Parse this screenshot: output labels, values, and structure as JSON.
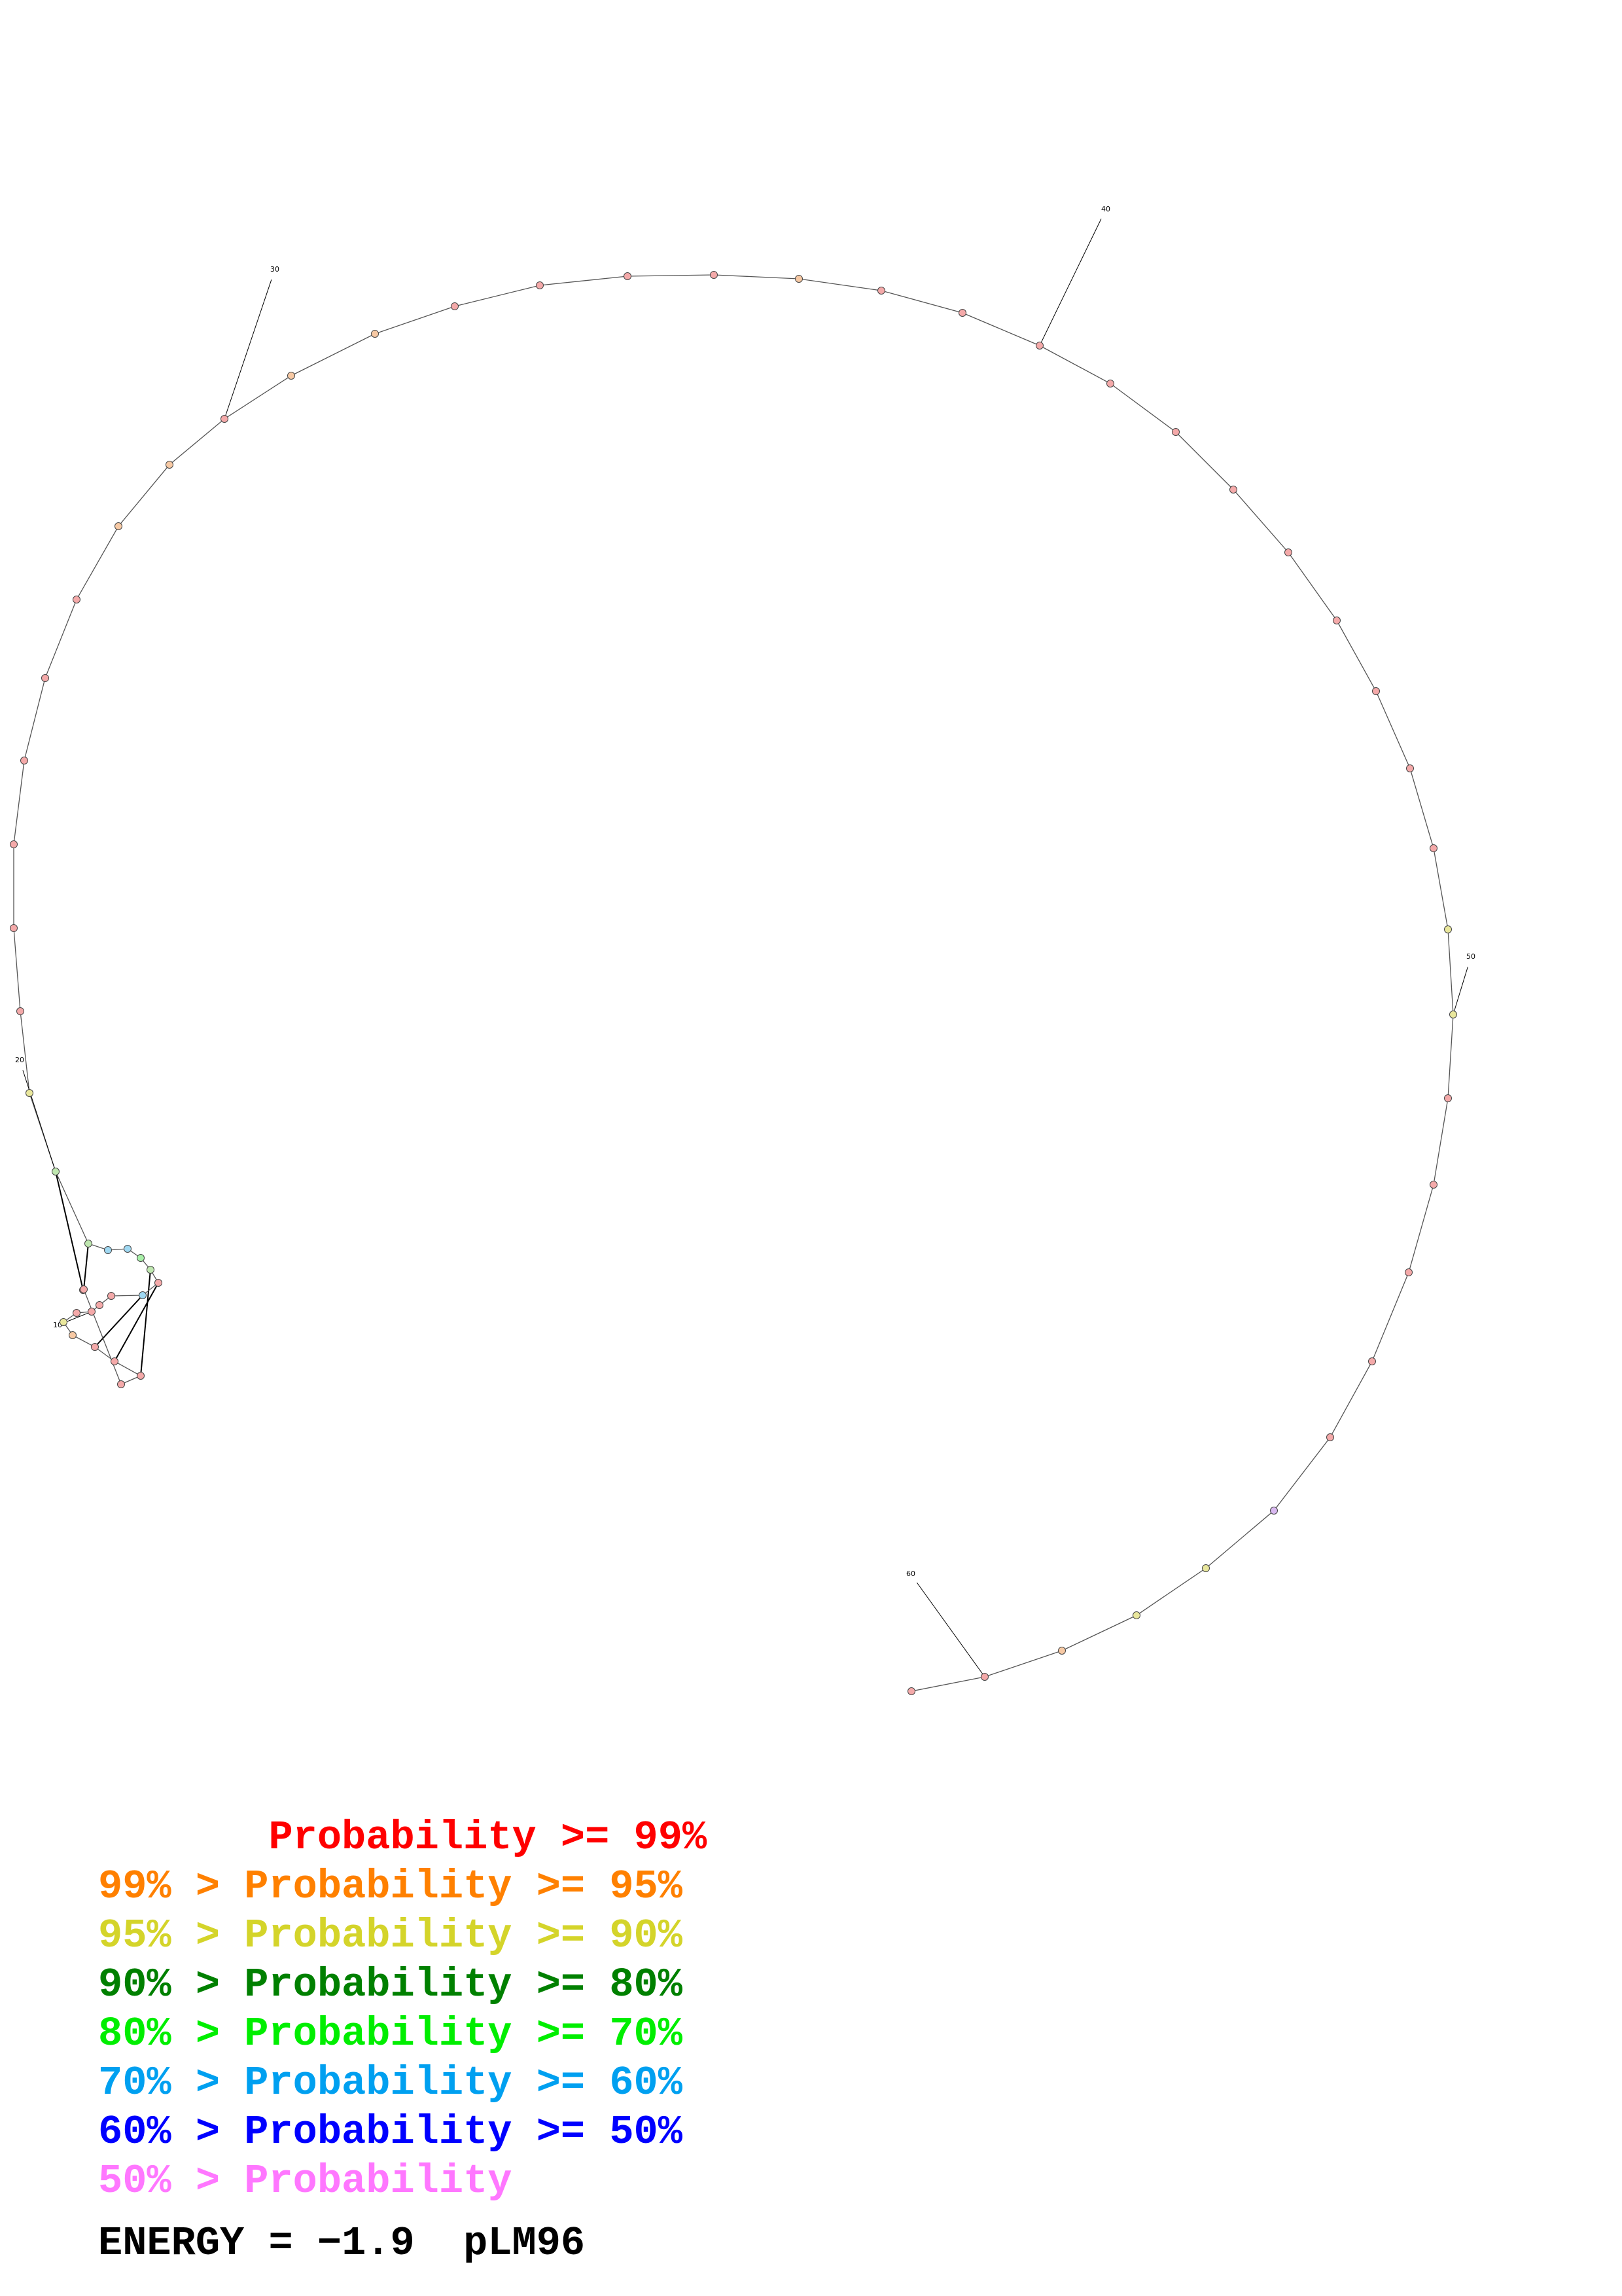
{
  "diagram": {
    "type": "RNA secondary structure",
    "backbone_color": "#555555",
    "pair_color": "#000000",
    "tick_labels": [
      "10",
      "20",
      "30",
      "40",
      "50",
      "60"
    ],
    "nucleotide_colors": [
      "#f4a9a9",
      "#f4a9a9",
      "#f4a9a9",
      "#f4a9a9",
      "#f4a9a9",
      "#f4a9a9",
      "#f7c9a4",
      "#e9e79c",
      "#f4a9a9",
      "#f4a9a9",
      "#f4a9a9",
      "#f4a9a9",
      "#9fd8f2",
      "#f4a9a9",
      "#bfe7b0",
      "#a8f0a8",
      "#9fd8f2",
      "#9fd8f2",
      "#bfe7b0",
      "#bfe7b0",
      "#e9e79c",
      "#f4a9a9",
      "#f4a9a9",
      "#f4a9a9",
      "#f4a9a9",
      "#f4a9a9",
      "#f4a9a9",
      "#f7c9a4",
      "#f7c9a4",
      "#f4a9a9",
      "#f7c9a4",
      "#f7c9a4",
      "#f4a9a9",
      "#f4a9a9",
      "#f4a9a9",
      "#f4a9a9",
      "#f7c9a4",
      "#f4a9a9",
      "#f4a9a9",
      "#f4a9a9",
      "#f4a9a9",
      "#f4a9a9",
      "#f4a9a9",
      "#f4a9a9",
      "#f4a9a9",
      "#f4a9a9",
      "#f4a9a9",
      "#f4a9a9",
      "#e9e79c",
      "#e9e79c",
      "#f4a9a9",
      "#f4a9a9",
      "#f4a9a9",
      "#f4a9a9",
      "#f4a9a9",
      "#d8b8f0",
      "#e9e79c",
      "#e9e79c",
      "#f7c9a4",
      "#f4a9a9",
      "#f4a9a9"
    ]
  },
  "legend": [
    {
      "text": "       Probability >= 99%",
      "color": "#ff0000"
    },
    {
      "text": "99% > Probability >= 95%",
      "color": "#ff8000"
    },
    {
      "text": "95% > Probability >= 90%",
      "color": "#d4d42a"
    },
    {
      "text": "90% > Probability >= 80%",
      "color": "#008000"
    },
    {
      "text": "80% > Probability >= 70%",
      "color": "#00ee00"
    },
    {
      "text": "70% > Probability >= 60%",
      "color": "#00a0f0"
    },
    {
      "text": "60% > Probability >= 50%",
      "color": "#0000ff"
    },
    {
      "text": "50% > Probability",
      "color": "#ff77ff"
    }
  ],
  "energy_label": "ENERGY = ",
  "energy_value": "−1.9",
  "sequence_name": "pLM96"
}
